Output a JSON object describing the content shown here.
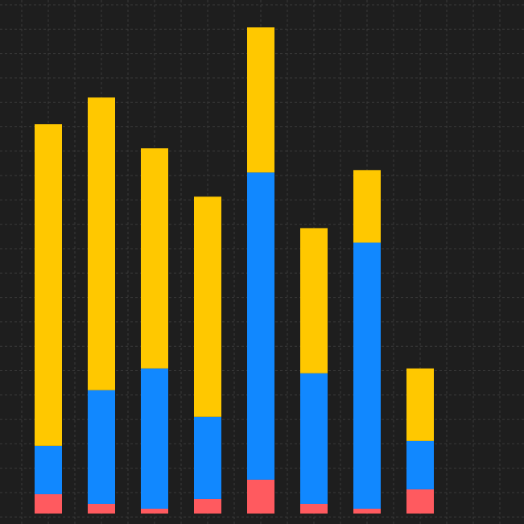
{
  "chart_data": {
    "type": "bar",
    "stacked": true,
    "categories": [
      "",
      "",
      "",
      "",
      "",
      "",
      "",
      ""
    ],
    "series": [
      {
        "color": "#ff5a5f",
        "values": [
          0.8,
          0.4,
          0.2,
          0.6,
          1.4,
          0.4,
          0.2,
          1.0
        ]
      },
      {
        "color": "#1188ff",
        "values": [
          2.0,
          4.7,
          5.8,
          3.4,
          12.7,
          5.4,
          11.0,
          2.0
        ]
      },
      {
        "color": "#ffc800",
        "values": [
          13.3,
          12.1,
          9.1,
          9.1,
          6.0,
          6.0,
          3.0,
          3.0
        ]
      }
    ],
    "ylim": [
      0,
      20.3
    ],
    "grid": true,
    "legend": "none"
  },
  "colors": {
    "background": "#1e1e1e",
    "grid": "#3a3a3a"
  }
}
